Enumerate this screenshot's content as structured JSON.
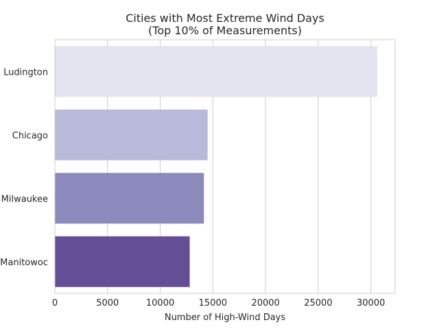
{
  "chart_data": {
    "type": "bar",
    "orientation": "horizontal",
    "title": "Cities with Most Extreme Wind Days",
    "subtitle": "(Top 10% of Measurements)",
    "xlabel": "Number of High-Wind Days",
    "ylabel": "",
    "categories": [
      "Ludington",
      "Chicago",
      "Milwaukee",
      "Manitowoc"
    ],
    "values": [
      30600,
      14500,
      14150,
      12800
    ],
    "colors": [
      "#e3e2ef",
      "#b9b9d9",
      "#8c8abd",
      "#644e96"
    ],
    "xlim": [
      0,
      32300
    ],
    "xticks": [
      0,
      5000,
      10000,
      15000,
      20000,
      25000,
      30000
    ],
    "grid": true
  }
}
